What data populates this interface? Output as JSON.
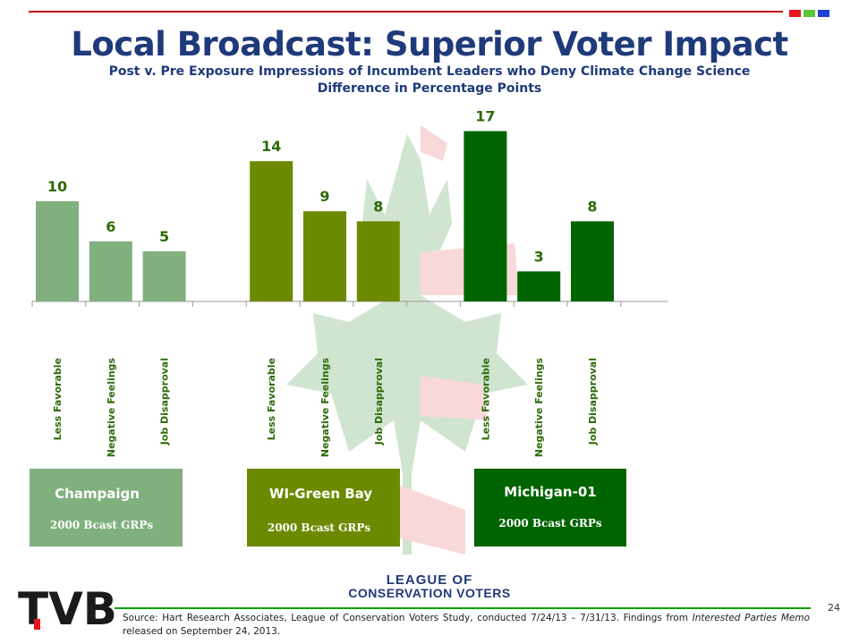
{
  "header": {
    "title": "Local Broadcast: Superior Voter Impact",
    "subtitle_line1": "Post v. Pre Exposure Impressions of Incumbent Leaders who Deny Climate Change Science",
    "subtitle_line2": "Difference in Percentage Points",
    "corner_squares": [
      "#e8141c",
      "#5ac43a",
      "#1e3fd0"
    ]
  },
  "colors": {
    "champaign": "#80b07e",
    "green_bay": "#6b8a00",
    "michigan": "#006400",
    "value_label": "#2e6b0a",
    "title": "#1f3a7a"
  },
  "chart_data": {
    "type": "bar",
    "categories": [
      "Less Favorable",
      "Negative Feelings",
      "Job Disapproval",
      "Less Favorable",
      "Negative Feelings",
      "Job Disapproval",
      "Less Favorable",
      "Negative Feelings",
      "Job Disapproval"
    ],
    "values": [
      10,
      6,
      5,
      14,
      9,
      8,
      17,
      3,
      8
    ],
    "group_index": [
      0,
      0,
      0,
      1,
      1,
      1,
      2,
      2,
      2
    ],
    "groups": [
      {
        "name": "Champaign",
        "subtitle": "2000 Bcast GRPs"
      },
      {
        "name": "WI-Green Bay",
        "subtitle": "2000 Bcast GRPs"
      },
      {
        "name": "Michigan-01",
        "subtitle": "2000 Bcast GRPs"
      }
    ],
    "ylim": [
      0,
      17
    ],
    "grid": false,
    "legend": "none"
  },
  "footer": {
    "lcv_line1": "LEAGUE OF",
    "lcv_line2": "CONSERVATION VOTERS",
    "logo_text": "TVB",
    "page_number": "24",
    "source_text": "Source: Hart Research Associates, League of Conservation Voters Study, conducted 7/24/13 – 7/31/13.  Findings from Interested Parties Memo released on September 24, 2013."
  }
}
